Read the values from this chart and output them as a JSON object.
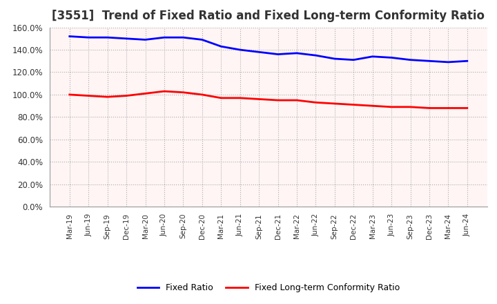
{
  "title": "[3551]  Trend of Fixed Ratio and Fixed Long-term Conformity Ratio",
  "x_labels": [
    "Mar-19",
    "Jun-19",
    "Sep-19",
    "Dec-19",
    "Mar-20",
    "Jun-20",
    "Sep-20",
    "Dec-20",
    "Mar-21",
    "Jun-21",
    "Sep-21",
    "Dec-21",
    "Mar-22",
    "Jun-22",
    "Sep-22",
    "Dec-22",
    "Mar-23",
    "Jun-23",
    "Sep-23",
    "Dec-23",
    "Mar-24",
    "Jun-24"
  ],
  "fixed_ratio": [
    152,
    151,
    151,
    150,
    149,
    151,
    151,
    149,
    143,
    140,
    138,
    136,
    137,
    135,
    132,
    131,
    134,
    133,
    131,
    130,
    129,
    130
  ],
  "fixed_lt_ratio": [
    100,
    99,
    98,
    99,
    101,
    103,
    102,
    100,
    97,
    97,
    96,
    95,
    95,
    93,
    92,
    91,
    90,
    89,
    89,
    88,
    88,
    88
  ],
  "fixed_ratio_color": "#0000FF",
  "fixed_lt_ratio_color": "#FF0000",
  "ylim": [
    0,
    160
  ],
  "yticks": [
    0,
    20,
    40,
    60,
    80,
    100,
    120,
    140,
    160
  ],
  "background_color": "#FFFFFF",
  "plot_bg_color": "#FFF5F5",
  "grid_color": "#AAAAAA",
  "title_fontsize": 12,
  "legend_labels": [
    "Fixed Ratio",
    "Fixed Long-term Conformity Ratio"
  ]
}
